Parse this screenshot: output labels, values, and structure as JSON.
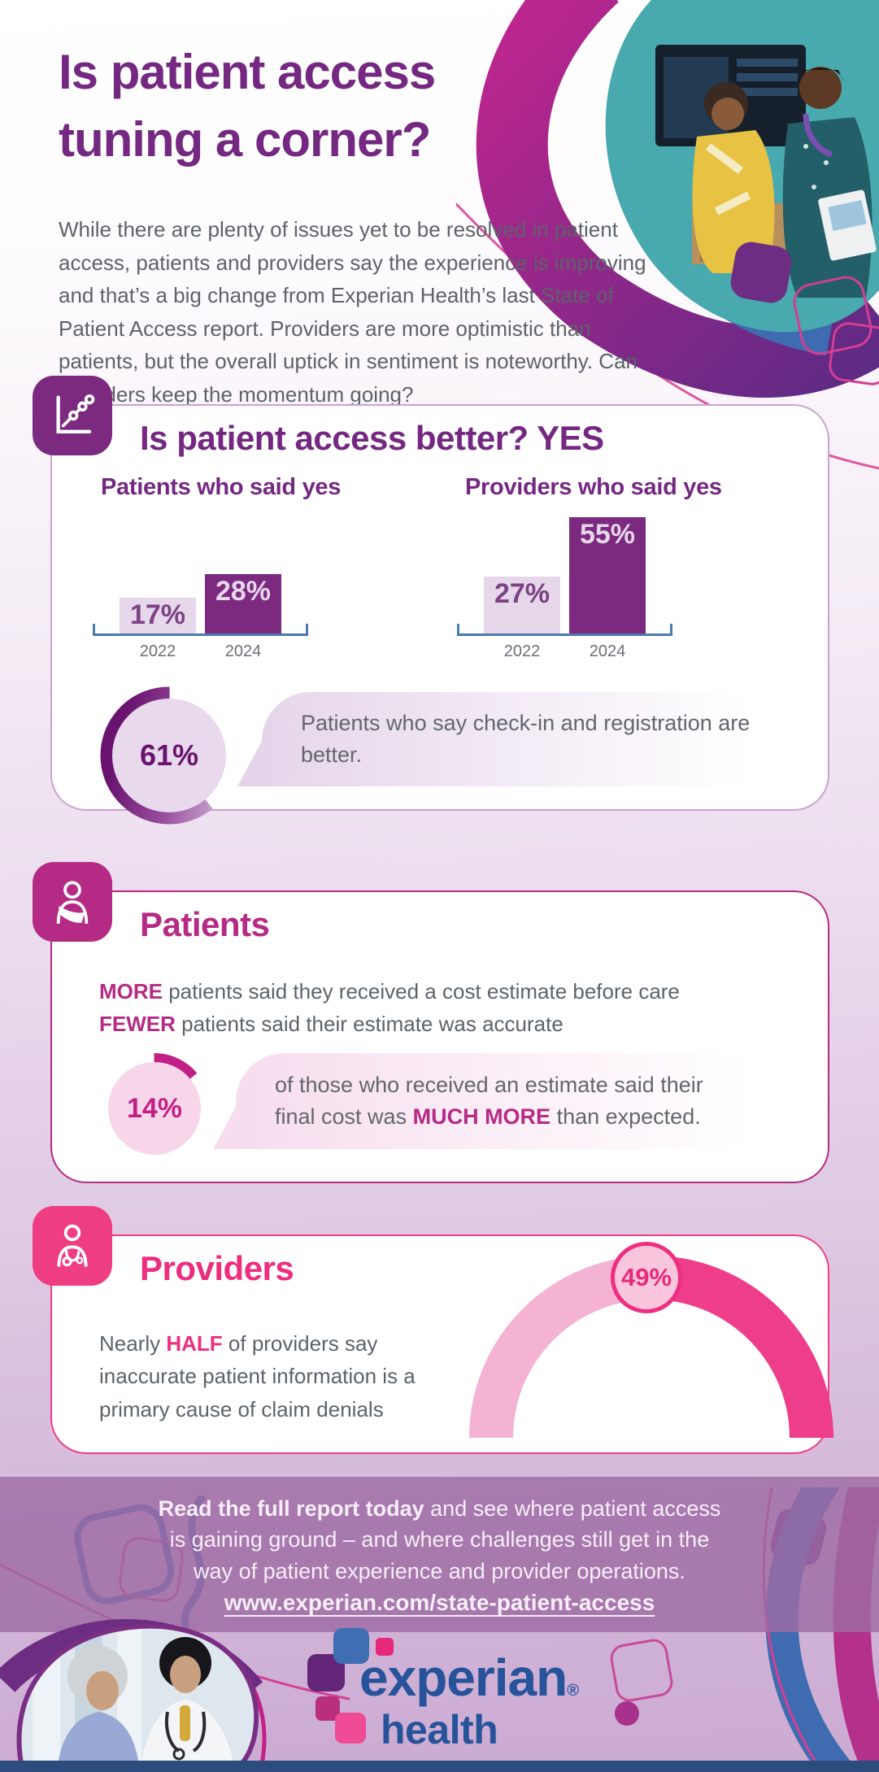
{
  "header": {
    "title_line1": "Is patient access",
    "title_line2": "tuning a corner?",
    "intro": "While there are plenty of issues yet to be resolved in patient access, patients and providers say the experience is improving and that’s a big change from Experian Health’s last State of Patient Access report. Providers are more optimistic than patients, but the overall uptick in sentiment is noteworthy. Can providers keep the momentum going?"
  },
  "section_access": {
    "heading": "Is patient access better? YES"
  },
  "chart_data": [
    {
      "type": "bar",
      "title": "Patients who said yes",
      "categories": [
        "2022",
        "2024"
      ],
      "values": [
        17,
        28
      ],
      "value_labels": [
        "17%",
        "28%"
      ],
      "bar_colors": [
        "#e7d7ea",
        "#7c2980"
      ],
      "baseline_color": "#4a7bae",
      "ylim": [
        0,
        60
      ]
    },
    {
      "type": "bar",
      "title": "Providers who said yes",
      "categories": [
        "2022",
        "2024"
      ],
      "values": [
        27,
        55
      ],
      "value_labels": [
        "27%",
        "55%"
      ],
      "bar_colors": [
        "#e7d7ea",
        "#7c2980"
      ],
      "baseline_color": "#4a7bae",
      "ylim": [
        0,
        60
      ]
    },
    {
      "type": "donut",
      "value": 61,
      "label": "61%",
      "caption": "Patients who say check-in and registration are better.",
      "ring_color": "#7c2980"
    },
    {
      "type": "donut",
      "value": 14,
      "label": "14%",
      "caption_pre": "of those who received an estimate said their final cost was ",
      "caption_bold": "MUCH MORE",
      "caption_post": " than expected.",
      "ring_color": "#c21f86"
    },
    {
      "type": "gauge",
      "value": 49,
      "label": "49%",
      "min": 0,
      "max": 100,
      "filled_color": "#f5b3d3",
      "remainder_color": "#ee3d8b"
    }
  ],
  "section_patients": {
    "heading": "Patients",
    "line1_bold": "MORE",
    "line1_rest": " patients said they received a cost estimate before care",
    "line2_bold": "FEWER",
    "line2_rest": " patients said their estimate was accurate"
  },
  "section_providers": {
    "heading": "Providers",
    "stat_pre": "Nearly ",
    "stat_bold": "HALF",
    "stat_post": " of providers say inaccurate patient information is a primary cause of claim denials"
  },
  "cta": {
    "line1_bold": "Read the full report today",
    "line1_rest": " and see where patient access",
    "line2": "is gaining ground – and where challenges still get in the",
    "line3": "way of patient experience and provider operations.",
    "link": "www.experian.com/state-patient-access"
  },
  "footer": {
    "brand": "experian",
    "registered": "®",
    "brand_sub": "health"
  },
  "colors": {
    "purple": "#742881",
    "dark_purple": "#7c2980",
    "light_lavender": "#e7d7ea",
    "magenta": "#b52a85",
    "pink": "#ee3d80",
    "gauge_dark_pink": "#ee3d8b",
    "gauge_light_pink": "#f5b3d3",
    "axis_blue": "#4a7bae",
    "body_gray": "#5d6369",
    "experian_blue": "#26539a"
  }
}
